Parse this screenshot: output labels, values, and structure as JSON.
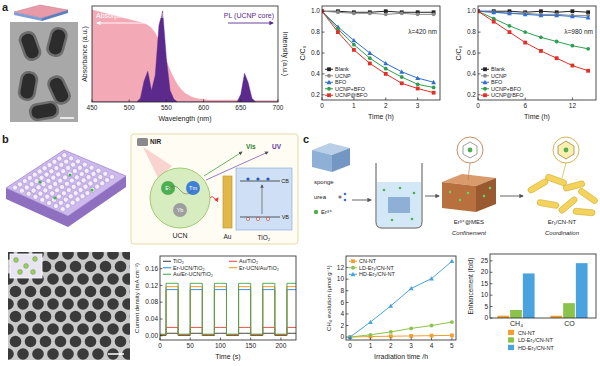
{
  "figure": {
    "panel_labels": [
      "a",
      "b",
      "c"
    ],
    "b_scheme": {
      "light": "NIR",
      "ions": [
        "Er",
        "Tm",
        "Yb"
      ],
      "particle": "UCN",
      "emission": [
        "Vis",
        "UV"
      ],
      "metal": "Au",
      "semiconductor": "TiO₂",
      "bands": [
        "CB",
        "VB"
      ]
    },
    "c_scheme": {
      "materials": [
        "sponge",
        "urea",
        "Er³⁺"
      ],
      "intermediate": "Er³⁺@MES",
      "steps": [
        "Confinement",
        "Coordination"
      ],
      "product": "Er₁/CN-NT"
    }
  },
  "chart_data": [
    {
      "type": "area",
      "x": [
        450,
        455,
        460,
        465,
        470,
        475,
        480,
        485,
        490,
        495,
        500,
        505,
        510,
        515,
        520,
        525,
        530,
        535,
        540,
        545,
        550,
        555,
        560,
        565,
        570,
        575,
        580,
        585,
        590,
        595,
        600,
        605,
        610,
        615,
        620,
        625,
        630,
        635,
        640,
        645,
        650,
        655,
        660,
        665,
        670,
        675,
        680,
        685,
        690,
        695,
        700
      ],
      "xlim": [
        450,
        700
      ],
      "xticks": [
        450,
        500,
        550,
        600,
        650,
        700
      ],
      "ylim": [
        0,
        1
      ],
      "yticks": [],
      "y2lim": [
        0,
        1
      ],
      "y2ticks": [],
      "tick_labels": "x",
      "xlabel": "Wavelength (nm)",
      "ylabel": "Absorbance (a.u.)",
      "y2label": "Intensity (a.u.)",
      "annotations": [
        "Absorption (BFO shell)",
        "PL (UCNP core)"
      ],
      "series": [
        {
          "color": "#f4a9b6",
          "values": [
            0.96,
            0.95,
            0.94,
            0.93,
            0.92,
            0.91,
            0.9,
            0.89,
            0.88,
            0.87,
            0.86,
            0.85,
            0.84,
            0.83,
            0.82,
            0.8,
            0.77,
            0.72,
            0.64,
            0.54,
            0.43,
            0.33,
            0.25,
            0.18,
            0.13,
            0.09,
            0.07,
            0.05,
            0.04,
            0.03,
            0.03,
            0.02,
            0.02,
            0.02,
            0.02,
            0.02,
            0.02,
            0.02,
            0.02,
            0.02,
            0.02,
            0.015,
            0.015,
            0.015,
            0.015,
            0.015,
            0.015,
            0.015,
            0.015,
            0.015,
            0.015
          ]
        },
        {
          "color": "#5b2a8c",
          "axis": "y2",
          "values": [
            0,
            0,
            0,
            0,
            0,
            0,
            0,
            0,
            0,
            0,
            0,
            0,
            0,
            0.04,
            0.22,
            0.32,
            0.12,
            0.28,
            0.8,
            0.95,
            0.45,
            0.12,
            0.03,
            0,
            0,
            0,
            0,
            0,
            0,
            0,
            0,
            0,
            0,
            0,
            0,
            0,
            0,
            0,
            0,
            0,
            0.08,
            0.3,
            0.2,
            0.04,
            0,
            0,
            0,
            0,
            0,
            0,
            0
          ]
        }
      ]
    },
    {
      "type": "line",
      "x": [
        0,
        0.5,
        1,
        1.5,
        2,
        2.5,
        3,
        3.5
      ],
      "xlim": [
        0,
        3.7
      ],
      "xticks": [
        0,
        1,
        2,
        3
      ],
      "ylim": [
        0.15,
        1.05
      ],
      "yticks": [
        0.2,
        0.4,
        0.6,
        0.8,
        {
          "value": 1,
          "label": "1.0"
        }
      ],
      "xlabel": "Time (h)",
      "ylabel": "C/C₀",
      "annotations": [
        "λ=420 nm"
      ],
      "legend": "lower left",
      "series": [
        {
          "name": "Blank",
          "color": "#222222",
          "marker": "square",
          "values": [
            1,
            1,
            0.99,
            0.99,
            1,
            0.99,
            0.99,
            0.99
          ]
        },
        {
          "name": "UCNP",
          "color": "#8a8a8a",
          "marker": "circle",
          "values": [
            1,
            0.99,
            0.98,
            0.98,
            0.97,
            0.98,
            0.97,
            0.97
          ]
        },
        {
          "name": "BFO",
          "color": "#2f6fd0",
          "marker": "triangle",
          "values": [
            1,
            0.85,
            0.72,
            0.6,
            0.5,
            0.42,
            0.36,
            0.32
          ]
        },
        {
          "name": "UCNP+BFO",
          "color": "#2e9e4f",
          "marker": "circle",
          "values": [
            1,
            0.83,
            0.68,
            0.55,
            0.45,
            0.37,
            0.3,
            0.27
          ]
        },
        {
          "name": "UCNP@BFO",
          "color": "#e0302a",
          "marker": "square",
          "values": [
            1,
            0.8,
            0.63,
            0.5,
            0.4,
            0.31,
            0.26,
            0.22
          ]
        }
      ]
    },
    {
      "type": "line",
      "x": [
        0,
        2,
        4,
        6,
        8,
        10,
        12,
        14
      ],
      "xlim": [
        0,
        15
      ],
      "xticks": [
        0,
        6,
        12
      ],
      "ylim": [
        0.15,
        1.05
      ],
      "yticks": [
        0.2,
        0.4,
        0.6,
        0.8,
        {
          "value": 1,
          "label": "1.0"
        }
      ],
      "xlabel": "Time (h)",
      "ylabel": "C/C₀",
      "annotations": [
        "λ=980 nm"
      ],
      "legend": "lower left",
      "series": [
        {
          "name": "Blank",
          "color": "#222222",
          "marker": "square",
          "values": [
            1,
            1,
            1,
            0.99,
            1,
            0.99,
            1,
            0.99
          ]
        },
        {
          "name": "UCNP",
          "color": "#8a8a8a",
          "marker": "circle",
          "values": [
            1,
            0.99,
            0.98,
            0.98,
            0.97,
            0.97,
            0.96,
            0.96
          ]
        },
        {
          "name": "BFO",
          "color": "#2f6fd0",
          "marker": "triangle",
          "values": [
            1,
            0.99,
            0.98,
            0.97,
            0.96,
            0.96,
            0.95,
            0.94
          ]
        },
        {
          "name": "UCNP+BFO",
          "color": "#2e9e4f",
          "marker": "circle",
          "values": [
            1,
            0.93,
            0.86,
            0.8,
            0.75,
            0.71,
            0.67,
            0.64
          ]
        },
        {
          "name": "UCNP@BFO",
          "color": "#e0302a",
          "marker": "square",
          "values": [
            1,
            0.9,
            0.8,
            0.7,
            0.62,
            0.55,
            0.48,
            0.43
          ]
        }
      ]
    },
    {
      "type": "line",
      "line_style": "step",
      "x": [
        0,
        10,
        20,
        30,
        40,
        50,
        60,
        70,
        80,
        90,
        100,
        110,
        120,
        130,
        140,
        150,
        160,
        170,
        180,
        190,
        200,
        210,
        220
      ],
      "xlim": [
        0,
        225
      ],
      "xticks": [
        0,
        50,
        100,
        150,
        200
      ],
      "ylim": [
        -0.01,
        0.19
      ],
      "yticks": [
        {
          "value": 0,
          "label": "0.00"
        },
        0.04,
        0.08,
        0.12,
        0.16
      ],
      "xlabel": "Time (s)",
      "ylabel": "Current density (mA cm⁻²)",
      "legend": "upper left",
      "series": [
        {
          "name": "TiO₂",
          "color": "#333333",
          "values": [
            0.001,
            0.006,
            0.006,
            0.001,
            0.001,
            0.006,
            0.006,
            0.001,
            0.001,
            0.006,
            0.006,
            0.001,
            0.001,
            0.006,
            0.006,
            0.001,
            0.001,
            0.006,
            0.006,
            0.001,
            0.001,
            0.006,
            0.006
          ]
        },
        {
          "name": "Au/TiO₂",
          "color": "#e53935",
          "values": [
            0.002,
            0.02,
            0.02,
            0.002,
            0.002,
            0.02,
            0.02,
            0.002,
            0.002,
            0.02,
            0.02,
            0.002,
            0.002,
            0.02,
            0.02,
            0.002,
            0.002,
            0.02,
            0.02,
            0.002,
            0.002,
            0.02,
            0.02
          ]
        },
        {
          "name": "Er-UCN/TiO₂",
          "color": "#1e88e5",
          "values": [
            0.003,
            0.11,
            0.11,
            0.003,
            0.003,
            0.11,
            0.11,
            0.003,
            0.003,
            0.11,
            0.11,
            0.003,
            0.003,
            0.11,
            0.11,
            0.003,
            0.003,
            0.11,
            0.11,
            0.003,
            0.003,
            0.11,
            0.11
          ]
        },
        {
          "name": "Er-UCN/Au/TiO₂",
          "color": "#fb8c00",
          "values": [
            0.003,
            0.117,
            0.117,
            0.003,
            0.003,
            0.117,
            0.117,
            0.003,
            0.003,
            0.117,
            0.117,
            0.003,
            0.003,
            0.117,
            0.117,
            0.003,
            0.003,
            0.117,
            0.117,
            0.003,
            0.003,
            0.117,
            0.117
          ]
        },
        {
          "name": "Au/Er-UCN/TiO₂",
          "color": "#43a047",
          "values": [
            0.004,
            0.125,
            0.125,
            0.004,
            0.004,
            0.125,
            0.125,
            0.004,
            0.004,
            0.125,
            0.125,
            0.004,
            0.004,
            0.125,
            0.125,
            0.004,
            0.004,
            0.125,
            0.125,
            0.004,
            0.004,
            0.125,
            0.125
          ]
        }
      ]
    },
    {
      "type": "line",
      "x": [
        0,
        1,
        2,
        3,
        4,
        5
      ],
      "xlim": [
        -0.2,
        5.2
      ],
      "xticks": [
        0,
        1,
        2,
        3,
        4,
        5
      ],
      "ylim": [
        -0.5,
        14
      ],
      "yticks": [
        0,
        2,
        4,
        6,
        8,
        10,
        12
      ],
      "xlabel": "Irradiation time /h",
      "ylabel": "CH₄ evolution (μmol g⁻¹)",
      "legend": "upper left",
      "series": [
        {
          "name": "CN-NT",
          "color": "#f0a030",
          "marker": "square",
          "values": [
            0,
            0.1,
            0.15,
            0.2,
            0.25,
            0.3
          ]
        },
        {
          "name": "LD-Er₁/CN-NT",
          "color": "#8bc34a",
          "marker": "circle",
          "values": [
            0,
            0.4,
            0.9,
            1.5,
            2,
            2.6
          ]
        },
        {
          "name": "HD-Er₁/CN-NT",
          "color": "#4aa3df",
          "marker": "triangle",
          "values": [
            0,
            2.6,
            5.4,
            8.4,
            10.1,
            13.1
          ]
        }
      ]
    },
    {
      "type": "bar",
      "categories": [
        "CH₄",
        "CO"
      ],
      "ylim": [
        0,
        28
      ],
      "yticks": [
        0,
        5,
        10,
        15,
        20,
        25
      ],
      "ylabel": "Enhancement (fold)",
      "legend": "bottom",
      "series": [
        {
          "name": "CN-NT",
          "color": "#f0a030",
          "values": [
            1,
            1
          ]
        },
        {
          "name": "LD-Er₁/CN-NT",
          "color": "#8bc34a",
          "values": [
            3.5,
            6.5
          ]
        },
        {
          "name": "HD-Er₁/CN-NT",
          "color": "#4aa3df",
          "values": [
            19.5,
            24
          ]
        }
      ]
    }
  ]
}
